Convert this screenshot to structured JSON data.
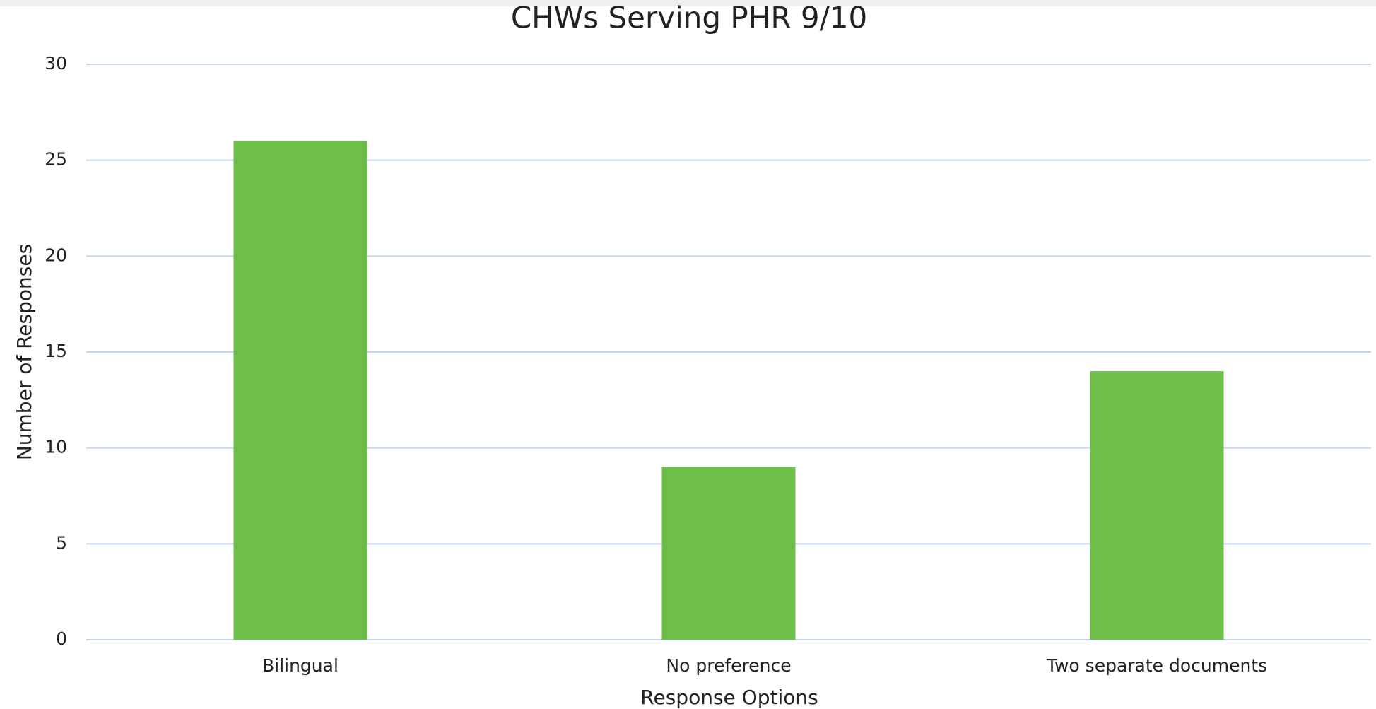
{
  "chart_data": {
    "type": "bar",
    "title": "CHWs Serving PHR 9/10",
    "x_label": "Response Options",
    "y_label": "Number of Responses",
    "categories": [
      "Bilingual",
      "No preference",
      "Two separate documents"
    ],
    "values": [
      26,
      9,
      14
    ],
    "color": "#6ebe4a",
    "ylim": [
      0,
      30
    ],
    "yticks": [
      0,
      5,
      10,
      15,
      20,
      25,
      30
    ],
    "grid": true
  }
}
